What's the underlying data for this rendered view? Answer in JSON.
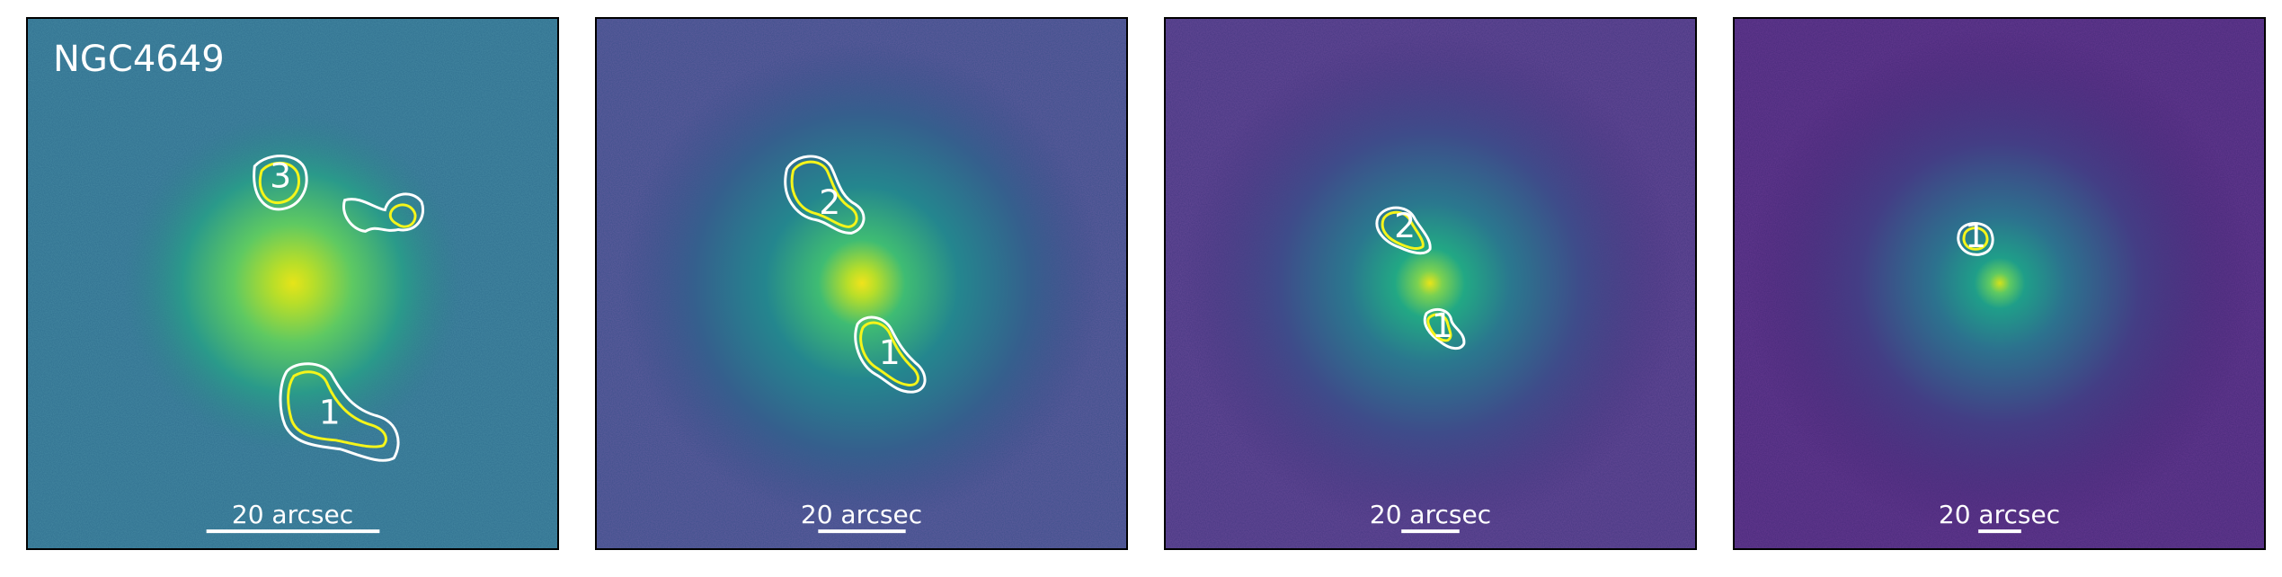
{
  "figure": {
    "galaxy_name": "NGC4649",
    "colors": {
      "inner_contour": "#f5f51a",
      "outer_contour": "#ffffff",
      "colormap": "viridis"
    },
    "panels": [
      {
        "id": "panel-1",
        "scale_label": "20 arcsec",
        "background_level": 0.42,
        "core_level": 0.95,
        "regions": [
          "3",
          "1"
        ]
      },
      {
        "id": "panel-2",
        "scale_label": "20 arcsec",
        "background_level": 0.2,
        "core_level": 0.92,
        "regions": [
          "2",
          "1"
        ]
      },
      {
        "id": "panel-3",
        "scale_label": "20 arcsec",
        "background_level": 0.13,
        "core_level": 0.9,
        "regions": [
          "2",
          "1"
        ]
      },
      {
        "id": "panel-4",
        "scale_label": "20 arcsec",
        "background_level": 0.09,
        "core_level": 0.88,
        "regions": [
          "1"
        ]
      }
    ]
  }
}
